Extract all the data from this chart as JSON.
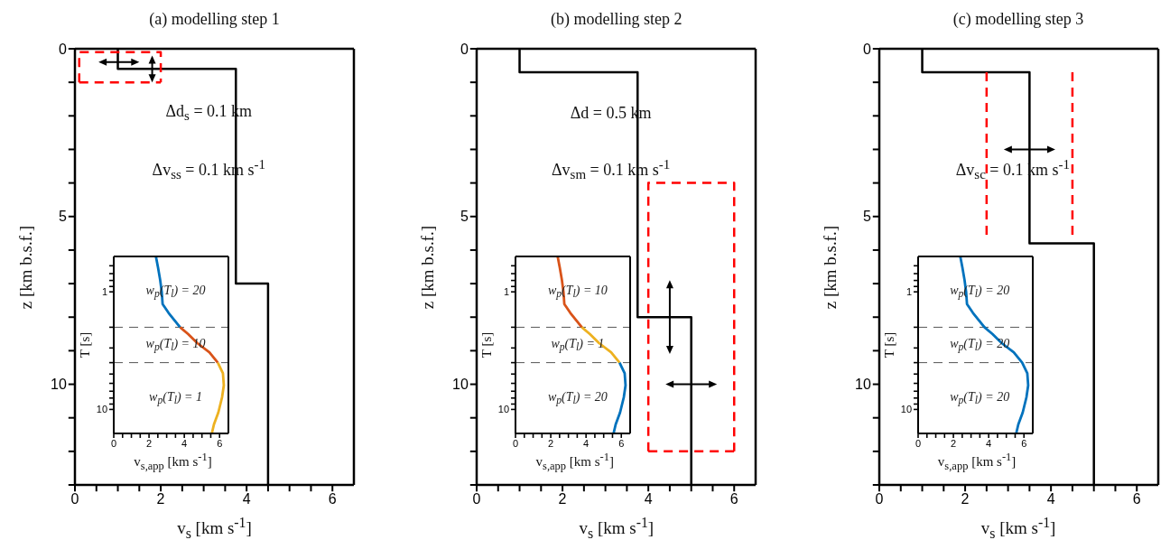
{
  "chart_data": [
    {
      "type": "line",
      "title": "(a) modelling step 1",
      "xlabel": "v$_{s}$ [km s$^{-1}$]",
      "ylabel": "z [km b.s.f.]",
      "annotations": [
        "Δd$_{s}$ = 0.1 km",
        "Δv$_{ss}$ = 0.1 km s$^{-1}$"
      ],
      "xlim": [
        0,
        6.5
      ],
      "ylim": [
        13,
        0
      ],
      "xticks": [
        0,
        {
          "value": 0.5,
          "label": null
        },
        {
          "value": 1,
          "label": null
        },
        {
          "value": 1.5,
          "label": null
        },
        2,
        {
          "value": 2.5,
          "label": null
        },
        {
          "value": 3,
          "label": null
        },
        {
          "value": 3.5,
          "label": null
        },
        4,
        {
          "value": 4.5,
          "label": null
        },
        {
          "value": 5,
          "label": null
        },
        {
          "value": 5.5,
          "label": null
        },
        6
      ],
      "yticks": [
        0,
        {
          "value": 1,
          "label": null
        },
        {
          "value": 2,
          "label": null
        },
        {
          "value": 3,
          "label": null
        },
        {
          "value": 4,
          "label": null
        },
        5,
        {
          "value": 6,
          "label": null
        },
        {
          "value": 7,
          "label": null
        },
        {
          "value": 8,
          "label": null
        },
        {
          "value": 9,
          "label": null
        },
        10,
        {
          "value": 11,
          "label": null
        },
        {
          "value": 12,
          "label": null
        },
        {
          "value": 13,
          "label": null
        }
      ],
      "series": [
        {
          "color": "#000000",
          "x": [
            1,
            1,
            3.75,
            3.75,
            4.5,
            4.5
          ],
          "values": [
            0,
            0.6,
            0.6,
            7,
            7,
            13
          ]
        },
        {
          "color": "#ff0000",
          "line_style": "dashed",
          "x": [
            0.1,
            0.1,
            2,
            2
          ],
          "values": [
            1,
            0.1,
            0.1,
            1
          ]
        },
        {
          "color": "#ff0000",
          "line_style": "dashed",
          "x": [
            0.1,
            2
          ],
          "values": [
            1,
            1
          ]
        }
      ]
    },
    {
      "type": "line",
      "xlabel": "v$_{s,app}$ [km s$^{-1}$]",
      "ylabel": "T [s]",
      "log": "y",
      "annotations": [
        "w$_{p}$(T$_{l}$) = 20",
        "w$_{p}$(T$_{l}$) = 10",
        "w$_{p}$(T$_{l}$) = 1"
      ],
      "xlim": [
        0,
        6.5
      ],
      "ylim": [
        16,
        0.5
      ],
      "xticks": [
        0,
        {
          "value": 0.5,
          "label": null
        },
        {
          "value": 1,
          "label": null
        },
        {
          "value": 1.5,
          "label": null
        },
        2,
        {
          "value": 2.5,
          "label": null
        },
        {
          "value": 3,
          "label": null
        },
        {
          "value": 3.5,
          "label": null
        },
        4,
        {
          "value": 4.5,
          "label": null
        },
        {
          "value": 5,
          "label": null
        },
        {
          "value": 5.5,
          "label": null
        },
        6
      ],
      "yticks": [
        {
          "value": 0.6,
          "label": null
        },
        {
          "value": 0.7,
          "label": null
        },
        {
          "value": 0.8,
          "label": null
        },
        {
          "value": 0.9,
          "label": null
        },
        1,
        {
          "value": 2,
          "label": null
        },
        {
          "value": 3,
          "label": null
        },
        {
          "value": 4,
          "label": null
        },
        {
          "value": 5,
          "label": null
        },
        {
          "value": 6,
          "label": null
        },
        {
          "value": 7,
          "label": null
        },
        {
          "value": 8,
          "label": null
        },
        {
          "value": 9,
          "label": null
        },
        10
      ],
      "ref_lines": [
        {
          "axis": "y",
          "value": 2,
          "color": "#555555",
          "line_style": "dashed"
        },
        {
          "axis": "y",
          "value": 4,
          "color": "#555555",
          "line_style": "dashed"
        }
      ],
      "series": [
        {
          "color": "#0072bd",
          "x": [
            2.39,
            2.51,
            2.63,
            2.72,
            2.77,
            3.11,
            3.76
          ],
          "values": [
            0.5,
            0.62,
            0.79,
            1,
            1.27,
            1.51,
            2
          ]
        },
        {
          "color": "#d95319",
          "x": [
            3.76,
            4.22,
            4.74,
            5.42,
            5.9
          ],
          "values": [
            2,
            2.29,
            2.73,
            3.26,
            4
          ]
        },
        {
          "color": "#edb120",
          "x": [
            5.9,
            6.19,
            6.24,
            6.14,
            5.93,
            5.68,
            5.56
          ],
          "values": [
            4,
            4.92,
            6.24,
            7.89,
            10.6,
            13.4,
            16
          ]
        }
      ]
    },
    {
      "type": "line",
      "title": "(b) modelling step 2",
      "xlabel": "v$_{s}$ [km s$^{-1}$]",
      "ylabel": "z [km b.s.f.]",
      "annotations": [
        "Δd = 0.5 km",
        "Δv$_{sm}$ = 0.1 km s$^{-1}$"
      ],
      "xlim": [
        0,
        6.5
      ],
      "ylim": [
        13,
        0
      ],
      "xticks": [
        0,
        {
          "value": 0.5,
          "label": null
        },
        {
          "value": 1,
          "label": null
        },
        {
          "value": 1.5,
          "label": null
        },
        2,
        {
          "value": 2.5,
          "label": null
        },
        {
          "value": 3,
          "label": null
        },
        {
          "value": 3.5,
          "label": null
        },
        4,
        {
          "value": 4.5,
          "label": null
        },
        {
          "value": 5,
          "label": null
        },
        {
          "value": 5.5,
          "label": null
        },
        6
      ],
      "yticks": [
        0,
        {
          "value": 1,
          "label": null
        },
        {
          "value": 2,
          "label": null
        },
        {
          "value": 3,
          "label": null
        },
        {
          "value": 4,
          "label": null
        },
        5,
        {
          "value": 6,
          "label": null
        },
        {
          "value": 7,
          "label": null
        },
        {
          "value": 8,
          "label": null
        },
        {
          "value": 9,
          "label": null
        },
        10,
        {
          "value": 11,
          "label": null
        },
        {
          "value": 12,
          "label": null
        },
        {
          "value": 13,
          "label": null
        }
      ],
      "series": [
        {
          "color": "#000000",
          "x": [
            1,
            1,
            3.75,
            3.75,
            5,
            5
          ],
          "values": [
            0,
            0.7,
            0.7,
            8,
            8,
            13
          ]
        },
        {
          "color": "#ff0000",
          "line_style": "dashed",
          "x": [
            4,
            4,
            6,
            6
          ],
          "values": [
            12,
            4,
            4,
            12
          ]
        },
        {
          "color": "#ff0000",
          "line_style": "dashed",
          "x": [
            4,
            6
          ],
          "values": [
            12,
            12
          ]
        }
      ]
    },
    {
      "type": "line",
      "xlabel": "v$_{s,app}$ [km s$^{-1}$]",
      "ylabel": "T [s]",
      "log": "y",
      "annotations": [
        "w$_{p}$(T$_{l}$) = 10",
        "w$_{p}$(T$_{l}$) = 1",
        "w$_{p}$(T$_{l}$) = 20"
      ],
      "xlim": [
        0,
        6.5
      ],
      "ylim": [
        16,
        0.5
      ],
      "xticks": [
        0,
        {
          "value": 0.5,
          "label": null
        },
        {
          "value": 1,
          "label": null
        },
        {
          "value": 1.5,
          "label": null
        },
        2,
        {
          "value": 2.5,
          "label": null
        },
        {
          "value": 3,
          "label": null
        },
        {
          "value": 3.5,
          "label": null
        },
        4,
        {
          "value": 4.5,
          "label": null
        },
        {
          "value": 5,
          "label": null
        },
        {
          "value": 5.5,
          "label": null
        },
        6
      ],
      "yticks": [
        {
          "value": 0.6,
          "label": null
        },
        {
          "value": 0.7,
          "label": null
        },
        {
          "value": 0.8,
          "label": null
        },
        {
          "value": 0.9,
          "label": null
        },
        1,
        {
          "value": 2,
          "label": null
        },
        {
          "value": 3,
          "label": null
        },
        {
          "value": 4,
          "label": null
        },
        {
          "value": 5,
          "label": null
        },
        {
          "value": 6,
          "label": null
        },
        {
          "value": 7,
          "label": null
        },
        {
          "value": 8,
          "label": null
        },
        {
          "value": 9,
          "label": null
        },
        10
      ],
      "ref_lines": [
        {
          "axis": "y",
          "value": 2,
          "color": "#555555",
          "line_style": "dashed"
        },
        {
          "axis": "y",
          "value": 4,
          "color": "#555555",
          "line_style": "dashed"
        }
      ],
      "series": [
        {
          "color": "#d95319",
          "x": [
            2.39,
            2.51,
            2.63,
            2.72,
            2.77,
            3.11,
            3.76
          ],
          "values": [
            0.5,
            0.62,
            0.79,
            1,
            1.27,
            1.51,
            2
          ]
        },
        {
          "color": "#edb120",
          "x": [
            3.76,
            4.22,
            4.74,
            5.42,
            5.9
          ],
          "values": [
            2,
            2.29,
            2.73,
            3.26,
            4
          ]
        },
        {
          "color": "#0072bd",
          "x": [
            5.9,
            6.19,
            6.24,
            6.14,
            5.93,
            5.68,
            5.56
          ],
          "values": [
            4,
            4.92,
            6.24,
            7.89,
            10.6,
            13.4,
            16
          ]
        }
      ]
    },
    {
      "type": "line",
      "title": "(c) modelling step 3",
      "xlabel": "v$_{s}$ [km s$^{-1}$]",
      "ylabel": "z [km b.s.f.]",
      "annotations": [
        "Δv$_{sc}$ = 0.1 km s$^{-1}$"
      ],
      "xlim": [
        0,
        6.5
      ],
      "ylim": [
        13,
        0
      ],
      "xticks": [
        0,
        {
          "value": 0.5,
          "label": null
        },
        {
          "value": 1,
          "label": null
        },
        {
          "value": 1.5,
          "label": null
        },
        2,
        {
          "value": 2.5,
          "label": null
        },
        {
          "value": 3,
          "label": null
        },
        {
          "value": 3.5,
          "label": null
        },
        4,
        {
          "value": 4.5,
          "label": null
        },
        {
          "value": 5,
          "label": null
        },
        {
          "value": 5.5,
          "label": null
        },
        6
      ],
      "yticks": [
        0,
        {
          "value": 1,
          "label": null
        },
        {
          "value": 2,
          "label": null
        },
        {
          "value": 3,
          "label": null
        },
        {
          "value": 4,
          "label": null
        },
        5,
        {
          "value": 6,
          "label": null
        },
        {
          "value": 7,
          "label": null
        },
        {
          "value": 8,
          "label": null
        },
        {
          "value": 9,
          "label": null
        },
        10,
        {
          "value": 11,
          "label": null
        },
        {
          "value": 12,
          "label": null
        },
        {
          "value": 13,
          "label": null
        }
      ],
      "series": [
        {
          "color": "#000000",
          "x": [
            1,
            1,
            3.5,
            3.5,
            5,
            5
          ],
          "values": [
            0,
            0.7,
            0.7,
            5.8,
            5.8,
            13
          ]
        },
        {
          "color": "#ff0000",
          "line_style": "dashed",
          "x": [
            2.5,
            2.5
          ],
          "values": [
            0.7,
            5.6
          ]
        },
        {
          "color": "#ff0000",
          "line_style": "dashed",
          "x": [
            4.5,
            4.5
          ],
          "values": [
            0.7,
            5.6
          ]
        }
      ]
    },
    {
      "type": "line",
      "xlabel": "v$_{s,app}$ [km s$^{-1}$]",
      "ylabel": "T [s]",
      "log": "y",
      "annotations": [
        "w$_{p}$(T$_{l}$) = 20",
        "w$_{p}$(T$_{l}$) = 20",
        "w$_{p}$(T$_{l}$) = 20"
      ],
      "xlim": [
        0,
        6.5
      ],
      "ylim": [
        16,
        0.5
      ],
      "xticks": [
        0,
        {
          "value": 0.5,
          "label": null
        },
        {
          "value": 1,
          "label": null
        },
        {
          "value": 1.5,
          "label": null
        },
        2,
        {
          "value": 2.5,
          "label": null
        },
        {
          "value": 3,
          "label": null
        },
        {
          "value": 3.5,
          "label": null
        },
        4,
        {
          "value": 4.5,
          "label": null
        },
        {
          "value": 5,
          "label": null
        },
        {
          "value": 5.5,
          "label": null
        },
        6
      ],
      "yticks": [
        {
          "value": 0.6,
          "label": null
        },
        {
          "value": 0.7,
          "label": null
        },
        {
          "value": 0.8,
          "label": null
        },
        {
          "value": 0.9,
          "label": null
        },
        1,
        {
          "value": 2,
          "label": null
        },
        {
          "value": 3,
          "label": null
        },
        {
          "value": 4,
          "label": null
        },
        {
          "value": 5,
          "label": null
        },
        {
          "value": 6,
          "label": null
        },
        {
          "value": 7,
          "label": null
        },
        {
          "value": 8,
          "label": null
        },
        {
          "value": 9,
          "label": null
        },
        10
      ],
      "ref_lines": [
        {
          "axis": "y",
          "value": 2,
          "color": "#555555",
          "line_style": "dashed"
        },
        {
          "axis": "y",
          "value": 4,
          "color": "#555555",
          "line_style": "dashed"
        }
      ],
      "series": [
        {
          "color": "#0072bd",
          "x": [
            2.39,
            2.51,
            2.63,
            2.72,
            2.77,
            3.11,
            3.76,
            4.22,
            4.74,
            5.42,
            5.9,
            6.19,
            6.24,
            6.14,
            5.93,
            5.68,
            5.56
          ],
          "values": [
            0.5,
            0.62,
            0.79,
            1,
            1.27,
            1.51,
            2,
            2.29,
            2.73,
            3.26,
            4,
            4.92,
            6.24,
            7.89,
            10.6,
            13.4,
            16
          ]
        }
      ]
    }
  ]
}
